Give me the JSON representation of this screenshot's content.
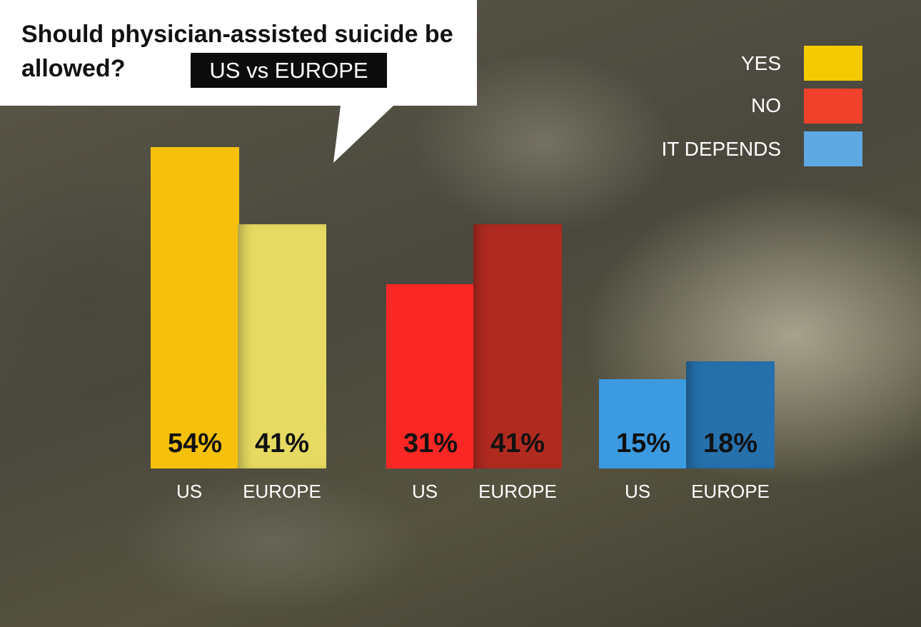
{
  "title": "Should physician-assisted suicide be allowed?",
  "badge": "US vs EUROPE",
  "colors": {
    "yes": "#f3cb00",
    "no": "#f0412a",
    "it_depends": "#5ea9e3"
  },
  "chart_data": {
    "type": "bar",
    "title": "Should physician-assisted suicide be allowed?",
    "subtitle": "US vs EUROPE",
    "ylim": [
      0,
      60
    ],
    "grid": false,
    "legend_position": "top-right",
    "legend": [
      {
        "name": "YES",
        "color": "#f3cb00"
      },
      {
        "name": "NO",
        "color": "#f0412a"
      },
      {
        "name": "IT DEPENDS",
        "color": "#5ea9e3"
      }
    ],
    "groups": [
      {
        "name": "YES",
        "bars": [
          {
            "category": "US",
            "value": 54,
            "label": "54%",
            "color": "#f6c00d"
          },
          {
            "category": "EUROPE",
            "value": 41,
            "label": "41%",
            "color": "#e6da62"
          }
        ]
      },
      {
        "name": "NO",
        "bars": [
          {
            "category": "US",
            "value": 31,
            "label": "31%",
            "color": "#fb2725"
          },
          {
            "category": "EUROPE",
            "value": 41,
            "label": "41%",
            "color": "#b02a20"
          }
        ]
      },
      {
        "name": "IT DEPENDS",
        "bars": [
          {
            "category": "US",
            "value": 15,
            "label": "15%",
            "color": "#3c9ae1"
          },
          {
            "category": "EUROPE",
            "value": 18,
            "label": "18%",
            "color": "#2670ac"
          }
        ]
      }
    ]
  }
}
